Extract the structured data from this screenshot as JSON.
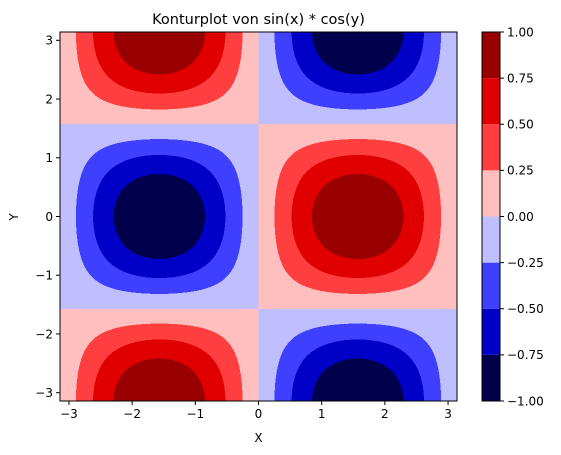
{
  "chart_data": {
    "type": "heatmap",
    "subtype": "filled-contour",
    "title": "Konturplot von sin(x) * cos(y)",
    "xlabel": "X",
    "ylabel": "Y",
    "xlim": [
      -3.14159,
      3.14159
    ],
    "ylim": [
      -3.14159,
      3.14159
    ],
    "xticks": [
      -3,
      -2,
      -1,
      0,
      1,
      2,
      3
    ],
    "yticks": [
      -3,
      -2,
      -1,
      0,
      1,
      2,
      3
    ],
    "xtick_labels": [
      "−3",
      "−2",
      "−1",
      "0",
      "1",
      "2",
      "3"
    ],
    "ytick_labels": [
      "−3",
      "−2",
      "−1",
      "0",
      "1",
      "2",
      "3"
    ],
    "levels": [
      -1.0,
      -0.75,
      -0.5,
      -0.25,
      0.0,
      0.25,
      0.5,
      0.75,
      1.0
    ],
    "colorbar_tick_labels": [
      "−1.00",
      "−0.75",
      "−0.50",
      "−0.25",
      "0.00",
      "0.25",
      "0.50",
      "0.75",
      "1.00"
    ],
    "colormap": "seismic",
    "band_colors": [
      "#00004c",
      "#0000c7",
      "#3f3fff",
      "#bfbfff",
      "#ffbfbf",
      "#ff3f3f",
      "#e00000",
      "#990000"
    ],
    "grid": false,
    "colorbar": "right"
  }
}
